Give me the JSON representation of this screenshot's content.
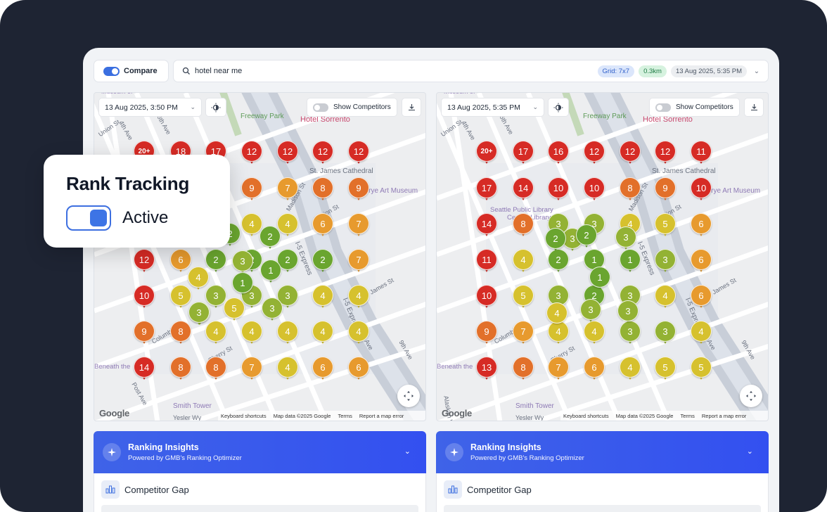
{
  "overlay": {
    "title": "Rank Tracking",
    "status": "Active"
  },
  "toolbar": {
    "compare_label": "Compare",
    "search_query": "hotel near me",
    "grid_badge": "Grid: 7x7",
    "distance_badge": "0.3km",
    "date_badge": "13 Aug 2025, 5:35 PM"
  },
  "colors": {
    "rank_1_3": "#6aa52f",
    "rank_3": "#93b234",
    "rank_4_5": "#d6c12e",
    "rank_6_7": "#e79a2e",
    "rank_8_9": "#e2702a",
    "rank_10_plus": "#d62b25",
    "accent": "#3d6fe0"
  },
  "maps": [
    {
      "date": "13 Aug 2025, 3:50 PM",
      "show_competitors": "Show Competitors",
      "footer": {
        "shortcuts": "Keyboard shortcuts",
        "mapdata": "Map data ©2025 Google",
        "terms": "Terms",
        "report": "Report a map error"
      },
      "logo": "Google",
      "grid": [
        [
          "20+",
          "18",
          "17",
          "12",
          "12",
          "12",
          "12"
        ],
        [
          "",
          "",
          "",
          "9",
          "7",
          "8",
          "9"
        ],
        [
          "",
          "",
          "",
          "4",
          "4",
          "6",
          "7"
        ],
        [
          "12",
          "6",
          "2",
          "2",
          "2",
          "2",
          "7"
        ],
        [
          "10",
          "5",
          "3",
          "3",
          "3",
          "4",
          "4"
        ],
        [
          "9",
          "8",
          "4",
          "4",
          "4",
          "4",
          "4"
        ],
        [
          "14",
          "8",
          "8",
          "7",
          "4",
          "6",
          "6"
        ]
      ],
      "extra_pins": [
        "2",
        "2",
        "4",
        "3",
        "1",
        "1",
        "3",
        "5",
        "3",
        "3"
      ],
      "labels": {
        "st_james": "St. James Cathedral",
        "frye": "Frye Art Museum",
        "hotel": "Hotel Sorrento",
        "freeway": "Freeway Park",
        "smith": "Smith Tower",
        "yesler": "Yesler Wy",
        "union": "Union St",
        "beneath": "Beneath the",
        "express": "I-5 Express",
        "columbia": "Columbia St",
        "cherry": "Cherry St",
        "madison": "Madison St",
        "marion": "Marion St",
        "james": "James St",
        "ave4": "4th Ave",
        "ave5": "5th Ave",
        "ave6": "6th Ave",
        "ave9": "9th Ave",
        "terry": "Terry Ave",
        "museum": "Museum of",
        "postave": "Post Ave"
      }
    },
    {
      "date": "13 Aug 2025, 5:35 PM",
      "show_competitors": "Show Competitors",
      "footer": {
        "shortcuts": "Keyboard shortcuts",
        "mapdata": "Map data ©2025 Google",
        "terms": "Terms",
        "report": "Report a map error"
      },
      "logo": "Google",
      "grid": [
        [
          "20+",
          "17",
          "16",
          "12",
          "12",
          "12",
          "11"
        ],
        [
          "17",
          "14",
          "10",
          "10",
          "8",
          "9",
          "10"
        ],
        [
          "14",
          "8",
          "3",
          "3",
          "4",
          "5",
          "6"
        ],
        [
          "11",
          "4",
          "2",
          "1",
          "1",
          "3",
          "6"
        ],
        [
          "10",
          "5",
          "3",
          "2",
          "3",
          "4",
          "6"
        ],
        [
          "9",
          "7",
          "4",
          "4",
          "3",
          "3",
          "4"
        ],
        [
          "13",
          "8",
          "7",
          "6",
          "4",
          "5",
          "5"
        ]
      ],
      "extra_pins": [
        "3",
        "2",
        "2",
        "3",
        "1",
        "4",
        "3",
        "3"
      ],
      "labels": {
        "st_james": "St. James Cathedral",
        "frye": "Frye Art Museum",
        "hotel": "Hotel Sorrento",
        "freeway": "Freeway Park",
        "library": "Seattle Public Library",
        "central": "Central Library",
        "smith": "Smith Tower",
        "yesler": "Yesler Wy",
        "union": "Union St",
        "beneath": "Beneath the",
        "express": "I-5 Express",
        "columbia": "Columbia St",
        "cherry": "Cherry St",
        "madison": "Madison St",
        "marion": "Marion St",
        "james": "James St",
        "ave4": "4th Ave",
        "ave5": "5th Ave",
        "ave6": "6th Ave",
        "ave9": "9th Ave",
        "terry": "Terry Ave",
        "museum": "Museum of",
        "alaskan": "Alaskan Wy"
      }
    }
  ],
  "insights": {
    "title": "Ranking Insights",
    "subtitle": "Powered by GMB's Ranking Optimizer",
    "section": "Competitor Gap"
  }
}
